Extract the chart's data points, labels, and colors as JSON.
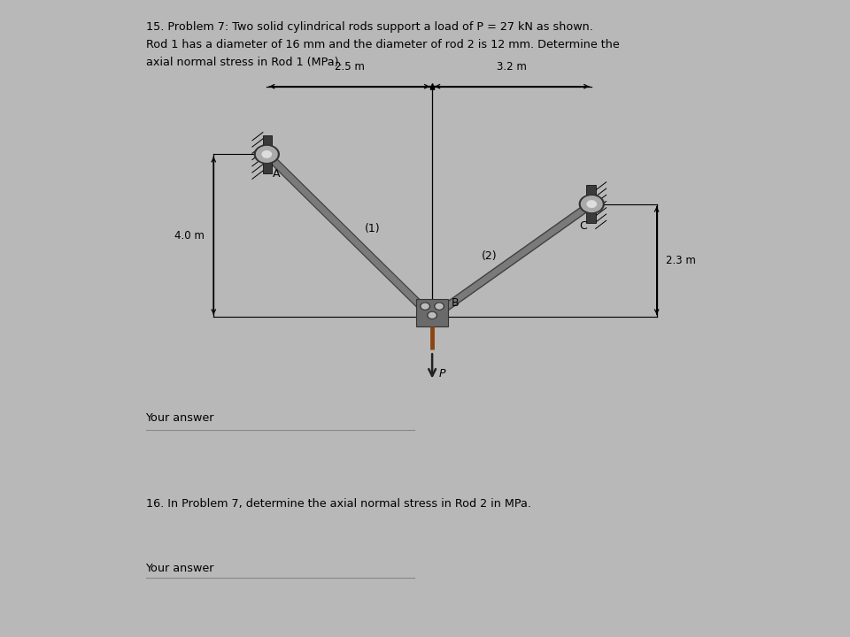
{
  "bg_outer": "#b8b8b8",
  "bg_card1": "#efefef",
  "bg_card2": "#efefef",
  "title_line1": "15. Problem 7: Two solid cylindrical rods support a load of P = 27 kN as shown.",
  "title_line2": "Rod 1 has a diameter of 16 mm and the diameter of rod 2 is 12 mm. Determine the",
  "title_line3": "axial normal stress in Rod 1 (MPa).",
  "your_answer_text": "Your answer",
  "q16_text": "16. In Problem 7, determine the axial normal stress in Rod 2 in MPa.",
  "your_answer_text2": "Your answer",
  "dim_25": "2.5 m",
  "dim_32": "3.2 m",
  "dim_40": "4.0 m",
  "dim_23": "2.3 m",
  "label_A": "A",
  "label_B": "B",
  "label_C": "C",
  "label_1": "(1)",
  "label_2": "(2)",
  "label_P": "P",
  "rod_color": "#7a7a7a",
  "wall_color": "#3a3a3a",
  "joint_color": "#888888",
  "arrow_color": "#222222"
}
